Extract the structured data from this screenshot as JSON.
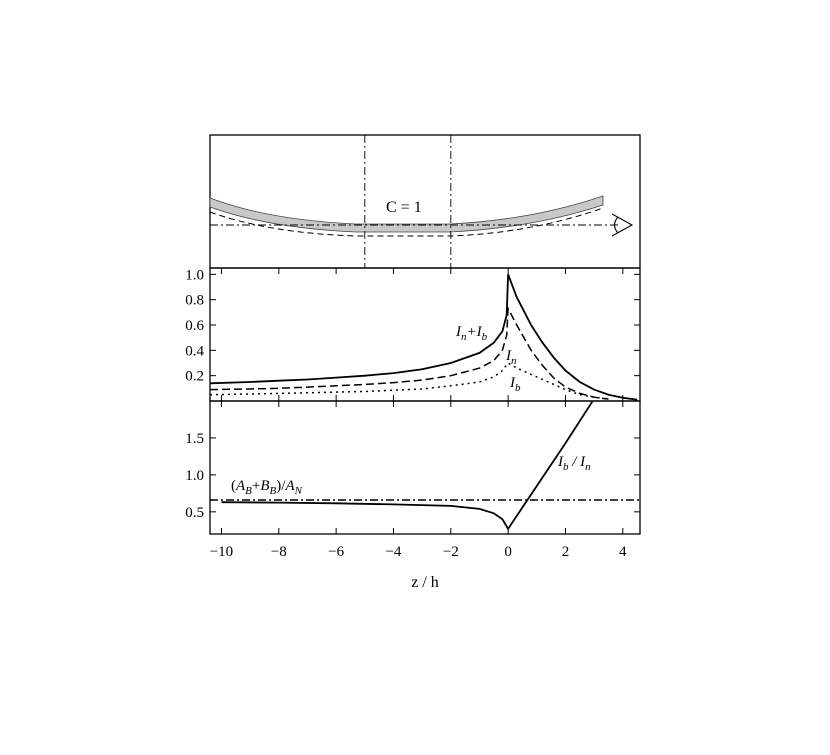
{
  "chart_data": [
    {
      "type": "diagram",
      "panel": "top",
      "label": "C = 1",
      "marker_x": [
        -5,
        -2
      ],
      "shape": "curved shaded band bending upward toward both ends, dashed lower edge, dash-dot line of sight ending at an eye symbol"
    },
    {
      "type": "line",
      "panel": "middle",
      "xlim": [
        -10.4,
        4.6
      ],
      "ylim": [
        0,
        1.05
      ],
      "y_ticks": [
        "0.2",
        "0.4",
        "0.6",
        "0.8",
        "1.0"
      ],
      "y_tick_values": [
        0.2,
        0.4,
        0.6,
        0.8,
        1.0
      ],
      "series": [
        {
          "name": "In+Ib",
          "sub_n": "n",
          "sub_b": "b",
          "style": "solid",
          "points": [
            [
              -10.4,
              0.14
            ],
            [
              -9,
              0.15
            ],
            [
              -8,
              0.16
            ],
            [
              -7,
              0.17
            ],
            [
              -6,
              0.185
            ],
            [
              -5,
              0.2
            ],
            [
              -4,
              0.22
            ],
            [
              -3,
              0.25
            ],
            [
              -2,
              0.3
            ],
            [
              -1,
              0.38
            ],
            [
              -0.5,
              0.46
            ],
            [
              -0.2,
              0.55
            ],
            [
              -0.05,
              0.68
            ],
            [
              0,
              1.0
            ],
            [
              0.3,
              0.82
            ],
            [
              0.8,
              0.6
            ],
            [
              1.2,
              0.46
            ],
            [
              1.6,
              0.34
            ],
            [
              2,
              0.24
            ],
            [
              2.5,
              0.15
            ],
            [
              3,
              0.09
            ],
            [
              3.5,
              0.05
            ],
            [
              4,
              0.025
            ],
            [
              4.5,
              0.01
            ]
          ]
        },
        {
          "name": "In",
          "sub": "n",
          "style": "dashed",
          "points": [
            [
              -10.4,
              0.09
            ],
            [
              -9,
              0.095
            ],
            [
              -8,
              0.1
            ],
            [
              -7,
              0.11
            ],
            [
              -6,
              0.12
            ],
            [
              -5,
              0.13
            ],
            [
              -4,
              0.145
            ],
            [
              -3,
              0.165
            ],
            [
              -2,
              0.2
            ],
            [
              -1,
              0.26
            ],
            [
              -0.5,
              0.32
            ],
            [
              -0.2,
              0.4
            ],
            [
              -0.05,
              0.52
            ],
            [
              0,
              0.73
            ],
            [
              0.3,
              0.6
            ],
            [
              0.8,
              0.4
            ],
            [
              1.2,
              0.28
            ],
            [
              1.6,
              0.18
            ],
            [
              2,
              0.11
            ],
            [
              2.5,
              0.06
            ],
            [
              3,
              0.03
            ],
            [
              3.5,
              0.015
            ]
          ]
        },
        {
          "name": "Ib",
          "sub": "b",
          "style": "dotted",
          "points": [
            [
              -10.4,
              0.05
            ],
            [
              -9,
              0.055
            ],
            [
              -8,
              0.06
            ],
            [
              -7,
              0.065
            ],
            [
              -6,
              0.07
            ],
            [
              -5,
              0.075
            ],
            [
              -4,
              0.085
            ],
            [
              -3,
              0.095
            ],
            [
              -2,
              0.12
            ],
            [
              -1,
              0.15
            ],
            [
              -0.5,
              0.19
            ],
            [
              -0.2,
              0.24
            ],
            [
              0,
              0.3
            ],
            [
              0.3,
              0.26
            ],
            [
              0.8,
              0.21
            ],
            [
              1.2,
              0.17
            ],
            [
              1.6,
              0.13
            ],
            [
              2,
              0.09
            ],
            [
              2.5,
              0.05
            ],
            [
              3,
              0.03
            ],
            [
              3.5,
              0.015
            ]
          ]
        }
      ]
    },
    {
      "type": "line",
      "panel": "bottom",
      "xlim": [
        -10.4,
        4.6
      ],
      "ylim": [
        0.2,
        2.0
      ],
      "y_ticks": [
        "0.5",
        "1.0",
        "1.5"
      ],
      "y_tick_values": [
        0.5,
        1.0,
        1.5
      ],
      "x_ticks": [
        "−10",
        "−8",
        "−6",
        "−4",
        "−2",
        "0",
        "2",
        "4"
      ],
      "x_tick_values": [
        -10,
        -8,
        -6,
        -4,
        -2,
        0,
        2,
        4
      ],
      "xlabel": "z / h",
      "series": [
        {
          "name": "Ib / In",
          "style": "solid",
          "points": [
            [
              -10,
              0.63
            ],
            [
              -8,
              0.625
            ],
            [
              -6,
              0.615
            ],
            [
              -4,
              0.6
            ],
            [
              -2,
              0.58
            ],
            [
              -1,
              0.54
            ],
            [
              -0.5,
              0.48
            ],
            [
              -0.2,
              0.4
            ],
            [
              0,
              0.27
            ],
            [
              1,
              0.85
            ],
            [
              2,
              1.43
            ],
            [
              2.95,
              2.0
            ]
          ]
        },
        {
          "name": "(AB+BB)/AN",
          "style": "dashdot",
          "constant": 0.66
        }
      ]
    }
  ]
}
